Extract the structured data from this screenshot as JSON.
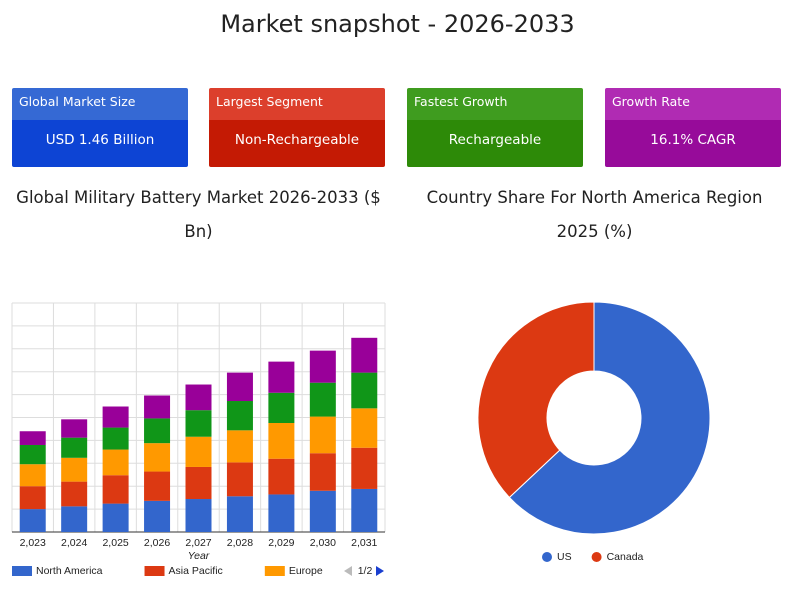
{
  "header": {
    "title": "Market snapshot - 2026-2033"
  },
  "cards": [
    {
      "label": "Global Market Size",
      "value": "USD 1.46 Billion"
    },
    {
      "label": "Largest Segment",
      "value": "Non-Rechargeable"
    },
    {
      "label": "Fastest Growth",
      "value": "Rechargeable"
    },
    {
      "label": "Growth Rate",
      "value": "16.1% CAGR"
    }
  ],
  "chart_data": [
    {
      "type": "stacked-bar",
      "title": "Global Military Battery Market 2026-2033 ($ Bn)",
      "x_label": "Year",
      "categories": [
        "2,023",
        "2,024",
        "2,025",
        "2,026",
        "2,027",
        "2,028",
        "2,029",
        "2,030",
        "2,031"
      ],
      "ylim": [
        0,
        2.5
      ],
      "grid": true,
      "legend_pager": "1/2",
      "series": [
        {
          "name": "North America",
          "color": "#3366cc",
          "values": [
            0.25,
            0.28,
            0.31,
            0.34,
            0.36,
            0.39,
            0.41,
            0.45,
            0.47
          ]
        },
        {
          "name": "Asia Pacific",
          "color": "#dc3912",
          "values": [
            0.25,
            0.27,
            0.31,
            0.32,
            0.35,
            0.37,
            0.39,
            0.41,
            0.45
          ]
        },
        {
          "name": "Europe",
          "color": "#ff9900",
          "values": [
            0.24,
            0.26,
            0.28,
            0.31,
            0.33,
            0.35,
            0.39,
            0.4,
            0.43
          ]
        },
        {
          "color": "#109618",
          "values": [
            0.21,
            0.22,
            0.24,
            0.27,
            0.29,
            0.32,
            0.33,
            0.37,
            0.39
          ]
        },
        {
          "color": "#990099",
          "values": [
            0.15,
            0.2,
            0.23,
            0.25,
            0.28,
            0.31,
            0.34,
            0.35,
            0.38
          ]
        }
      ]
    },
    {
      "type": "donut",
      "title": "Country Share For North America Region 2025 (%)",
      "categories": [
        "US",
        "Canada"
      ],
      "values": [
        63,
        37
      ],
      "colors": [
        "#3366cc",
        "#dc3912"
      ]
    }
  ]
}
